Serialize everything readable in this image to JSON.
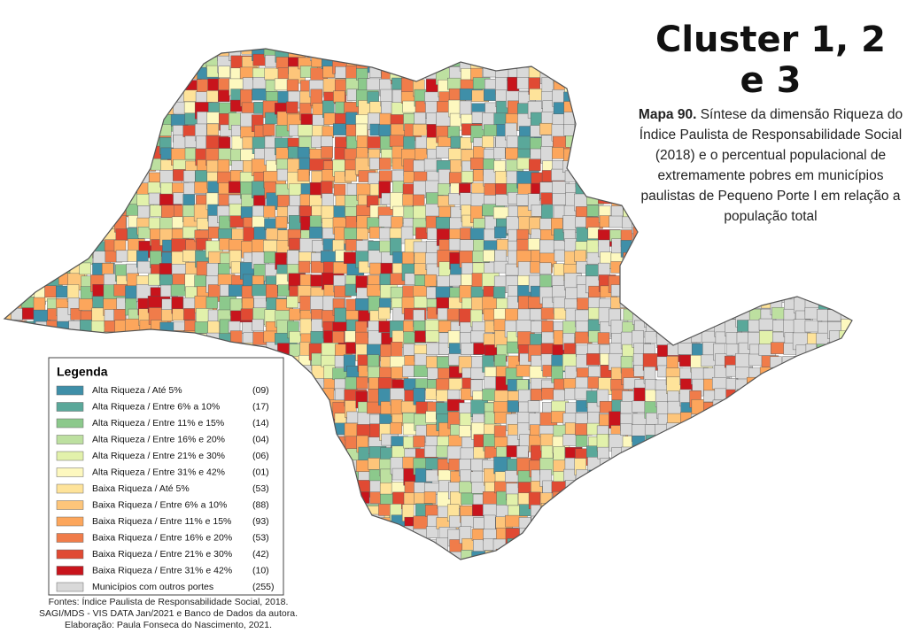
{
  "header": {
    "title": "Cluster 1, 2 e 3"
  },
  "caption": {
    "label": "Mapa 90.",
    "text": "Síntese da dimensão Riqueza do Índice Paulista de Responsabilidade Social (2018) e o percentual populacional de extremamente pobres em municípios paulistas de Pequeno Porte I em relação a população total"
  },
  "legend": {
    "title": "Legenda",
    "items": [
      {
        "label": "Alta Riqueza / Até 5%",
        "count": "(09)",
        "color": "#3f8fa8"
      },
      {
        "label": "Alta Riqueza / Entre 6% a 10%",
        "count": "(17)",
        "color": "#5aa89a"
      },
      {
        "label": "Alta Riqueza / Entre 11% e 15%",
        "count": "(14)",
        "color": "#8cc98c"
      },
      {
        "label": "Alta Riqueza / Entre 16% e 20%",
        "count": "(04)",
        "color": "#bde0a0"
      },
      {
        "label": "Alta Riqueza / Entre 21% e 30%",
        "count": "(06)",
        "color": "#e2f1ab"
      },
      {
        "label": "Alta Riqueza / Entre 31% e 42%",
        "count": "(01)",
        "color": "#fdf8bf"
      },
      {
        "label": "Baixa Riqueza / Até 5%",
        "count": "(53)",
        "color": "#fee39a"
      },
      {
        "label": "Baixa Riqueza / Entre 6% a 10%",
        "count": "(88)",
        "color": "#fdc57a"
      },
      {
        "label": "Baixa Riqueza / Entre 11% e 15%",
        "count": "(93)",
        "color": "#fca65c"
      },
      {
        "label": "Baixa Riqueza / Entre 16% e 20%",
        "count": "(53)",
        "color": "#f07c4a"
      },
      {
        "label": "Baixa Riqueza / Entre 21% e 30%",
        "count": "(42)",
        "color": "#e04a33"
      },
      {
        "label": "Baixa Riqueza / Entre 31% e 42%",
        "count": "(10)",
        "color": "#c8141c"
      },
      {
        "label": "Municípios com outros portes",
        "count": "(255)",
        "color": "#d9d9d9"
      }
    ]
  },
  "sources": [
    "Fontes: Índice Paulista de Responsabilidade Social, 2018.",
    "SAGI/MDS - VIS DATA Jan/2021 e Banco de Dados da autora.",
    "Elaboração: Paula Fonseca do Nascimento, 2021."
  ]
}
